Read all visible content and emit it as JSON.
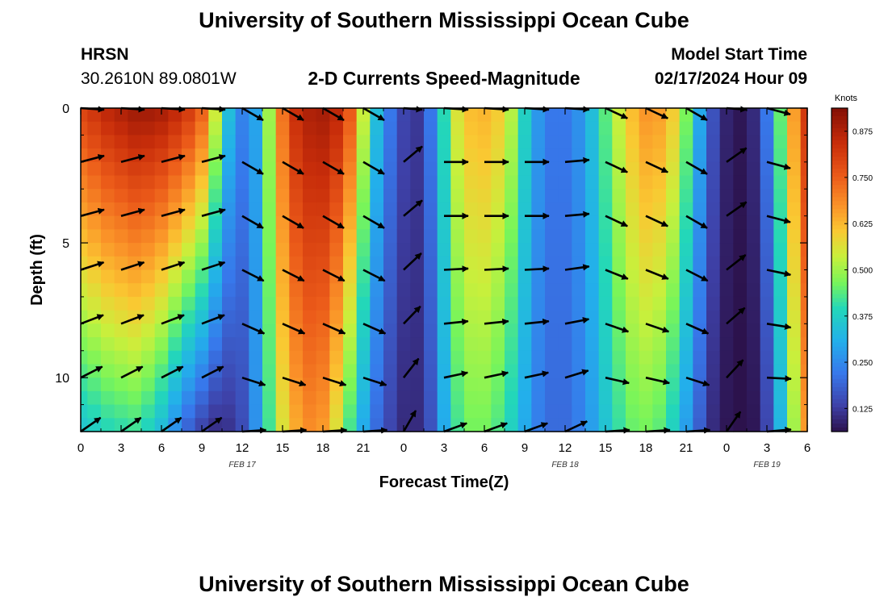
{
  "page": {
    "title": "University of Southern Mississippi Ocean Cube",
    "footer_title": "University of Southern Mississippi Ocean Cube",
    "station": "HRSN",
    "coords": "30.2610N  89.0801W",
    "plot_title": "2-D Currents Speed-Magnitude",
    "model_start_label": "Model Start Time",
    "model_start_value": "02/17/2024 Hour 09"
  },
  "chart_data": {
    "type": "heatmap",
    "xlabel": "Forecast Time(Z)",
    "ylabel": "Depth (ft)",
    "x_tick_labels": [
      "0",
      "3",
      "6",
      "9",
      "12",
      "15",
      "18",
      "21",
      "0",
      "3",
      "6",
      "9",
      "12",
      "15",
      "18",
      "21",
      "0",
      "3",
      "6"
    ],
    "date_labels": [
      {
        "text": "FEB 17",
        "hour_index": 12
      },
      {
        "text": "FEB 18",
        "hour_index": 36
      },
      {
        "text": "FEB 19",
        "hour_index": 51
      }
    ],
    "x_range_hours": [
      0,
      54
    ],
    "y_range_ft": [
      0,
      12
    ],
    "y_ticks": [
      0,
      5,
      10
    ],
    "y_tick_labels": [
      "0",
      "5",
      "10"
    ],
    "colorbar": {
      "label": "Knots",
      "range": [
        0.0625,
        0.9375
      ],
      "ticks": [
        0.125,
        0.25,
        0.375,
        0.5,
        0.625,
        0.75,
        0.875
      ],
      "tick_labels": [
        "0.125",
        "0.250",
        "0.375",
        "0.500",
        "0.625",
        "0.750",
        "0.875"
      ]
    },
    "hours": [
      0,
      1,
      2,
      3,
      4,
      5,
      6,
      7,
      8,
      9,
      10,
      11,
      12,
      13,
      14,
      15,
      16,
      17,
      18,
      19,
      20,
      21,
      22,
      23,
      24,
      25,
      26,
      27,
      28,
      29,
      30,
      31,
      32,
      33,
      34,
      35,
      36,
      37,
      38,
      39,
      40,
      41,
      42,
      43,
      44,
      45,
      46,
      47,
      48,
      49,
      50,
      51,
      52,
      53,
      54
    ],
    "surface_speed": [
      0.8,
      0.83,
      0.86,
      0.88,
      0.9,
      0.9,
      0.89,
      0.86,
      0.82,
      0.75,
      0.55,
      0.34,
      0.24,
      0.29,
      0.5,
      0.72,
      0.84,
      0.88,
      0.89,
      0.86,
      0.76,
      0.54,
      0.34,
      0.22,
      0.14,
      0.12,
      0.22,
      0.4,
      0.56,
      0.62,
      0.63,
      0.6,
      0.52,
      0.38,
      0.27,
      0.22,
      0.22,
      0.26,
      0.34,
      0.44,
      0.54,
      0.62,
      0.67,
      0.66,
      0.6,
      0.47,
      0.3,
      0.16,
      0.09,
      0.07,
      0.1,
      0.22,
      0.45,
      0.66,
      0.82
    ],
    "bottom_speed": [
      0.35,
      0.37,
      0.39,
      0.4,
      0.41,
      0.38,
      0.33,
      0.25,
      0.18,
      0.13,
      0.1,
      0.11,
      0.15,
      0.26,
      0.42,
      0.56,
      0.64,
      0.68,
      0.66,
      0.56,
      0.42,
      0.3,
      0.2,
      0.14,
      0.1,
      0.1,
      0.16,
      0.3,
      0.42,
      0.46,
      0.46,
      0.43,
      0.38,
      0.3,
      0.23,
      0.2,
      0.2,
      0.23,
      0.28,
      0.35,
      0.41,
      0.45,
      0.46,
      0.44,
      0.38,
      0.28,
      0.18,
      0.1,
      0.07,
      0.06,
      0.07,
      0.14,
      0.32,
      0.5,
      0.66
    ],
    "arrow_depths_ft": [
      0,
      2,
      4,
      6,
      8,
      10,
      12
    ],
    "arrow_hours": [
      0,
      3,
      6,
      9,
      12,
      15,
      18,
      21,
      24,
      27,
      30,
      33,
      36,
      39,
      42,
      45,
      48,
      51
    ],
    "arrow_angles_deg": [
      15,
      15,
      15,
      15,
      -30,
      -30,
      -30,
      -30,
      40,
      0,
      0,
      0,
      5,
      -25,
      -25,
      -30,
      35,
      -15
    ],
    "arrow_angle_shift_per_row_deg": [
      0,
      0,
      0,
      3,
      6,
      12,
      20
    ]
  }
}
